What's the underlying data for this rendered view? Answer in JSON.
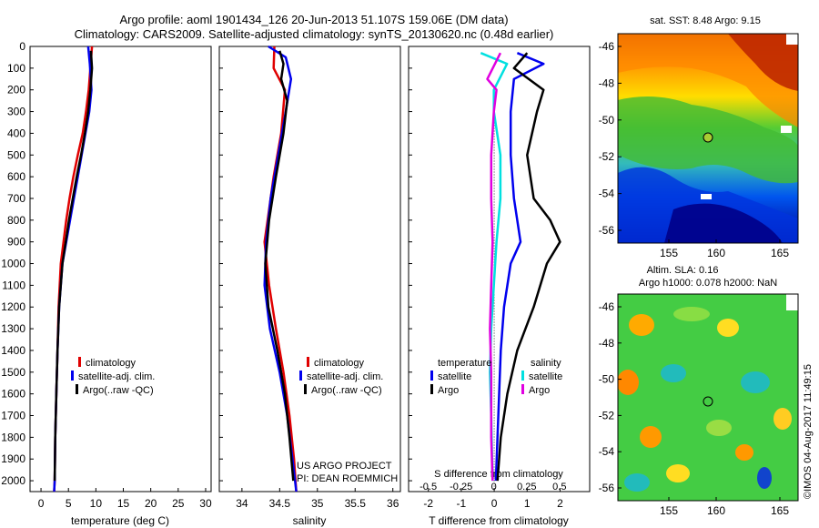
{
  "title": {
    "line1": "Argo profile: aoml 1901434_126 20-Jun-2013 51.107S 159.06E (DM data)",
    "line2": "Climatology: CARS2009. Satellite-adjusted climatology: synTS_20130620.nc (0.48d earlier)"
  },
  "colors": {
    "clim": "#e00000",
    "sat": "#0000ee",
    "argo": "#000000",
    "sat_s": "#00e0e0",
    "argo_s": "#e000e0"
  },
  "depth_ticks": [
    "0",
    "100",
    "200",
    "300",
    "400",
    "500",
    "600",
    "700",
    "800",
    "900",
    "1000",
    "1100",
    "1200",
    "1300",
    "1400",
    "1500",
    "1600",
    "1700",
    "1800",
    "1900",
    "2000"
  ],
  "panel_temp": {
    "xlabel": "temperature (deg C)",
    "xticks": [
      "0",
      "5",
      "10",
      "15",
      "20",
      "25",
      "30"
    ],
    "legend": [
      "climatology",
      "satellite-adj. clim.",
      "Argo(..raw -QC)"
    ]
  },
  "panel_sal": {
    "xlabel": "salinity",
    "xticks": [
      "34",
      "34.5",
      "35",
      "35.5",
      "36"
    ],
    "legend": [
      "climatology",
      "satellite-adj. clim.",
      "Argo(..raw -QC)"
    ],
    "project_line1": "US ARGO PROJECT",
    "project_line2": "PI: DEAN ROEMMICH"
  },
  "panel_diff": {
    "xlabel": "T difference from climatology",
    "xticks": [
      "-2",
      "-1",
      "0",
      "1",
      "2"
    ],
    "top_label": "S difference from climatology",
    "top_ticks": [
      "-0.5",
      "-0.25",
      "0",
      "0.25",
      "0.5"
    ],
    "legend_t_title": "temperature",
    "legend_s_title": "salinity",
    "legend_t": [
      "satellite",
      "Argo"
    ],
    "legend_s": [
      "satellite",
      "Argo"
    ]
  },
  "map_sst": {
    "title": "sat. SST: 8.48 Argo: 9.15",
    "yticks": [
      "-46",
      "-48",
      "-50",
      "-52",
      "-54",
      "-56"
    ],
    "xticks": [
      "155",
      "160",
      "165"
    ]
  },
  "map_sla": {
    "title1": "Altim. SLA: 0.16",
    "title2": "Argo h1000: 0.078 h2000: NaN",
    "yticks": [
      "-46",
      "-48",
      "-50",
      "-52",
      "-54",
      "-56"
    ],
    "xticks": [
      "155",
      "160",
      "165"
    ]
  },
  "credit": "©IMOS 04-Aug-2017 11:49:15",
  "chart_data": [
    {
      "type": "line",
      "xlabel": "temperature (deg C)",
      "ylabel": "",
      "xlim": [
        -2,
        31
      ],
      "ylim": [
        2050,
        0
      ],
      "series": [
        {
          "name": "climatology",
          "x": [
            9.3,
            9.0,
            8.7,
            8.2,
            7.6,
            6.7,
            5.9,
            5.2,
            4.6,
            4.1,
            3.6,
            3.2,
            3.0,
            2.8,
            2.6,
            2.5,
            2.4
          ],
          "y": [
            0,
            100,
            200,
            300,
            400,
            500,
            600,
            700,
            800,
            900,
            1000,
            1200,
            1400,
            1600,
            1800,
            2000,
            2050
          ]
        },
        {
          "name": "satellite-adj. clim.",
          "x": [
            8.6,
            8.9,
            9.2,
            8.8,
            8.1,
            7.4,
            6.7,
            6.0,
            5.3,
            4.6,
            3.9,
            3.3,
            3.0,
            2.8,
            2.6,
            2.5,
            2.4
          ],
          "y": [
            0,
            80,
            200,
            300,
            400,
            500,
            600,
            700,
            800,
            900,
            1000,
            1200,
            1400,
            1600,
            1800,
            2000,
            2050
          ]
        },
        {
          "name": "Argo(..raw -QC)",
          "x": [
            9.1,
            9.3,
            9.0,
            8.6,
            8.0,
            7.3,
            6.5,
            5.8,
            5.1,
            4.5,
            3.9,
            3.3,
            3.0,
            2.8,
            2.6,
            2.5
          ],
          "y": [
            20,
            100,
            200,
            300,
            400,
            500,
            600,
            700,
            800,
            900,
            1000,
            1200,
            1400,
            1600,
            1800,
            2000
          ]
        }
      ]
    },
    {
      "type": "line",
      "xlabel": "salinity",
      "xlim": [
        33.7,
        36.1
      ],
      "ylim": [
        2050,
        0
      ],
      "series": [
        {
          "name": "climatology",
          "x": [
            34.43,
            34.42,
            34.57,
            34.52,
            34.42,
            34.34,
            34.3,
            34.36,
            34.45,
            34.55,
            34.63,
            34.69,
            34.72
          ],
          "y": [
            0,
            100,
            200,
            400,
            600,
            800,
            900,
            1100,
            1300,
            1500,
            1700,
            1900,
            2050
          ]
        },
        {
          "name": "satellite-adj. clim.",
          "x": [
            34.35,
            34.58,
            34.65,
            34.58,
            34.48,
            34.38,
            34.32,
            34.3,
            34.37,
            34.5,
            34.6,
            34.67,
            34.72
          ],
          "y": [
            0,
            50,
            150,
            300,
            500,
            700,
            900,
            1100,
            1300,
            1500,
            1700,
            1900,
            2050
          ]
        },
        {
          "name": "Argo(..raw -QC)",
          "x": [
            34.5,
            34.55,
            34.52,
            34.6,
            34.55,
            34.45,
            34.36,
            34.31,
            34.35,
            34.47,
            34.57,
            34.63,
            34.68
          ],
          "y": [
            20,
            80,
            150,
            250,
            400,
            600,
            800,
            1000,
            1200,
            1400,
            1600,
            1800,
            2000
          ]
        }
      ]
    },
    {
      "type": "line",
      "xlabel": "T difference from climatology",
      "xlim": [
        -2.6,
        2.9
      ],
      "ylim": [
        2050,
        0
      ],
      "series": [
        {
          "name": "satellite",
          "x": [
            0.7,
            1.5,
            0.6,
            0.5,
            0.5,
            0.6,
            0.7,
            0.8,
            0.5,
            0.3,
            0.2,
            0.15,
            0.1,
            0.05
          ],
          "y": [
            30,
            80,
            150,
            300,
            500,
            700,
            800,
            900,
            1000,
            1200,
            1400,
            1600,
            1800,
            2000
          ]
        },
        {
          "name": "Argo",
          "x": [
            1.0,
            0.6,
            1.5,
            1.3,
            1.0,
            1.2,
            1.7,
            2.0,
            1.6,
            1.2,
            0.7,
            0.4,
            0.2,
            0.1
          ],
          "y": [
            30,
            100,
            200,
            300,
            500,
            700,
            800,
            900,
            1000,
            1200,
            1400,
            1600,
            1800,
            2000
          ]
        }
      ]
    },
    {
      "type": "line",
      "xlabel": "S difference from climatology",
      "xlim": [
        -0.65,
        0.73
      ],
      "ylim": [
        2050,
        0
      ],
      "series": [
        {
          "name": "satellite",
          "x": [
            -0.1,
            0.1,
            0.0,
            0.0,
            0.05,
            0.05,
            0.02,
            0.0,
            -0.02,
            -0.03,
            -0.02,
            -0.01
          ],
          "y": [
            30,
            80,
            200,
            300,
            500,
            700,
            900,
            1100,
            1300,
            1500,
            1700,
            2000
          ]
        },
        {
          "name": "Argo",
          "x": [
            0.05,
            -0.05,
            0.02,
            0.0,
            -0.02,
            -0.02,
            -0.01,
            -0.02,
            -0.03,
            -0.02,
            -0.02,
            -0.01
          ],
          "y": [
            30,
            150,
            200,
            300,
            500,
            700,
            900,
            1100,
            1300,
            1500,
            1800,
            2000
          ]
        }
      ]
    }
  ]
}
